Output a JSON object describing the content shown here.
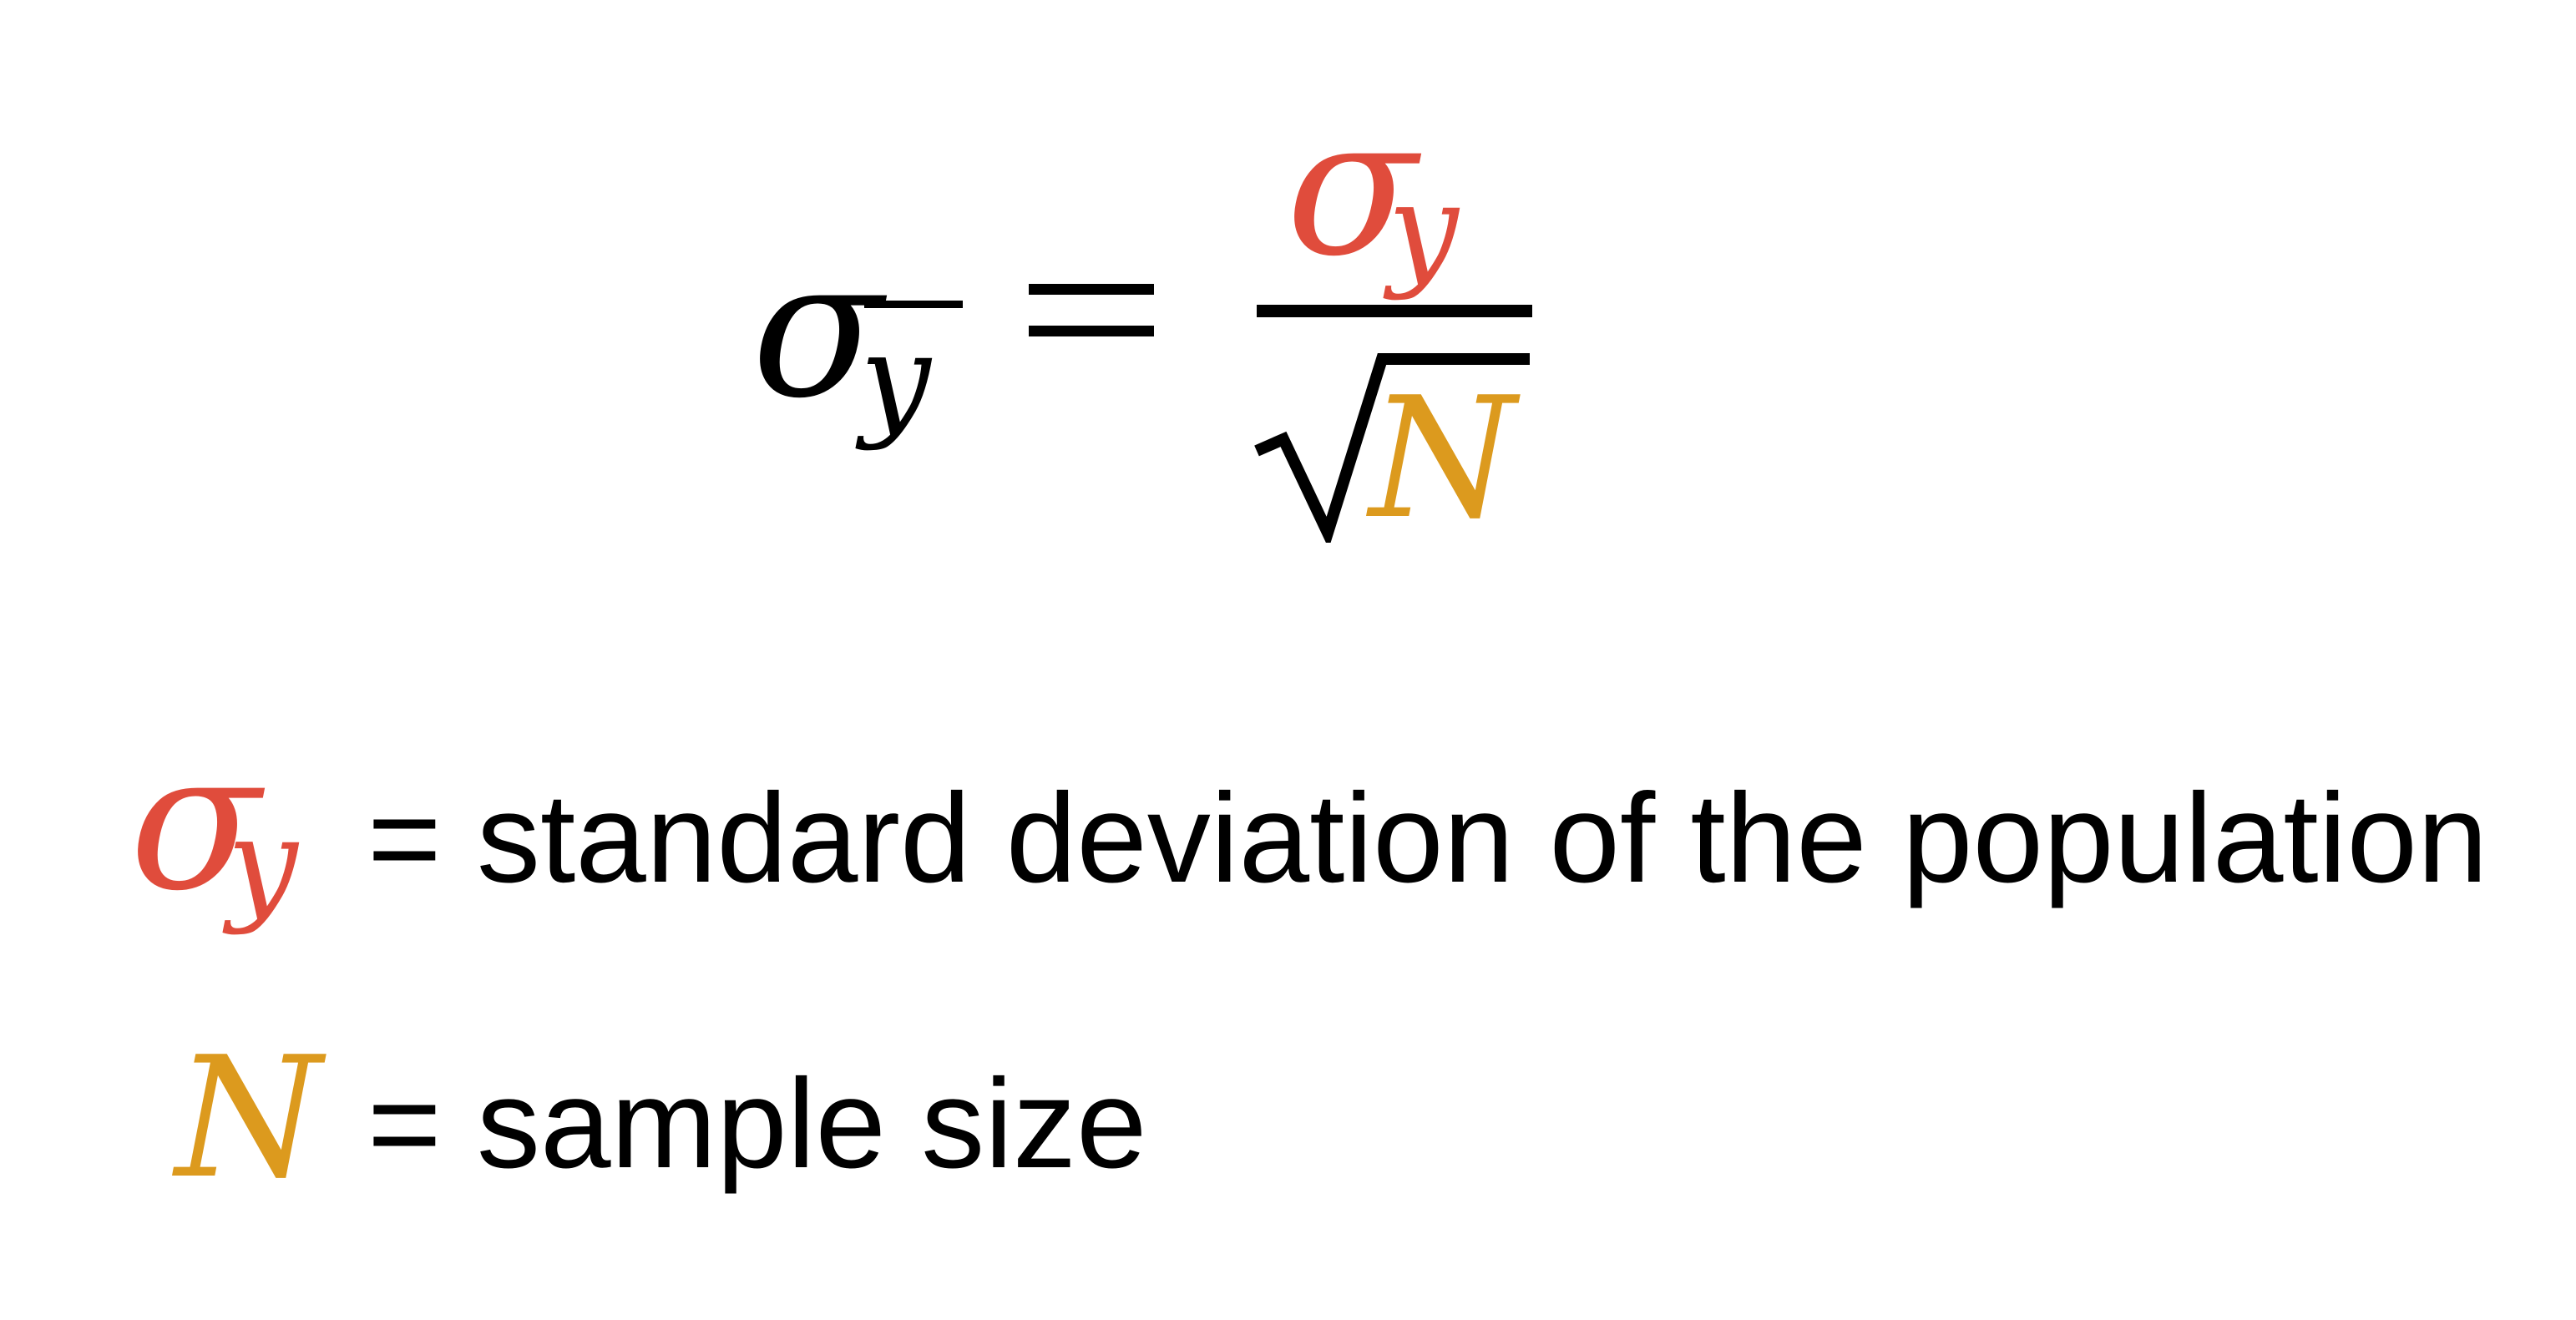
{
  "formula": {
    "lhs_symbol": "σ",
    "lhs_subscript": "y",
    "equals": "=",
    "numerator_symbol": "σ",
    "numerator_subscript": "y",
    "denominator_variable": "N"
  },
  "legend": [
    {
      "symbol": "σ",
      "subscript": "y",
      "text": "= standard deviation of the population"
    },
    {
      "symbol": "N",
      "text": "= sample size"
    }
  ],
  "colors": {
    "sigma_y": "#e04c3c",
    "n": "#dc9a1e",
    "ink": "#000000",
    "background": "#ffffff"
  }
}
